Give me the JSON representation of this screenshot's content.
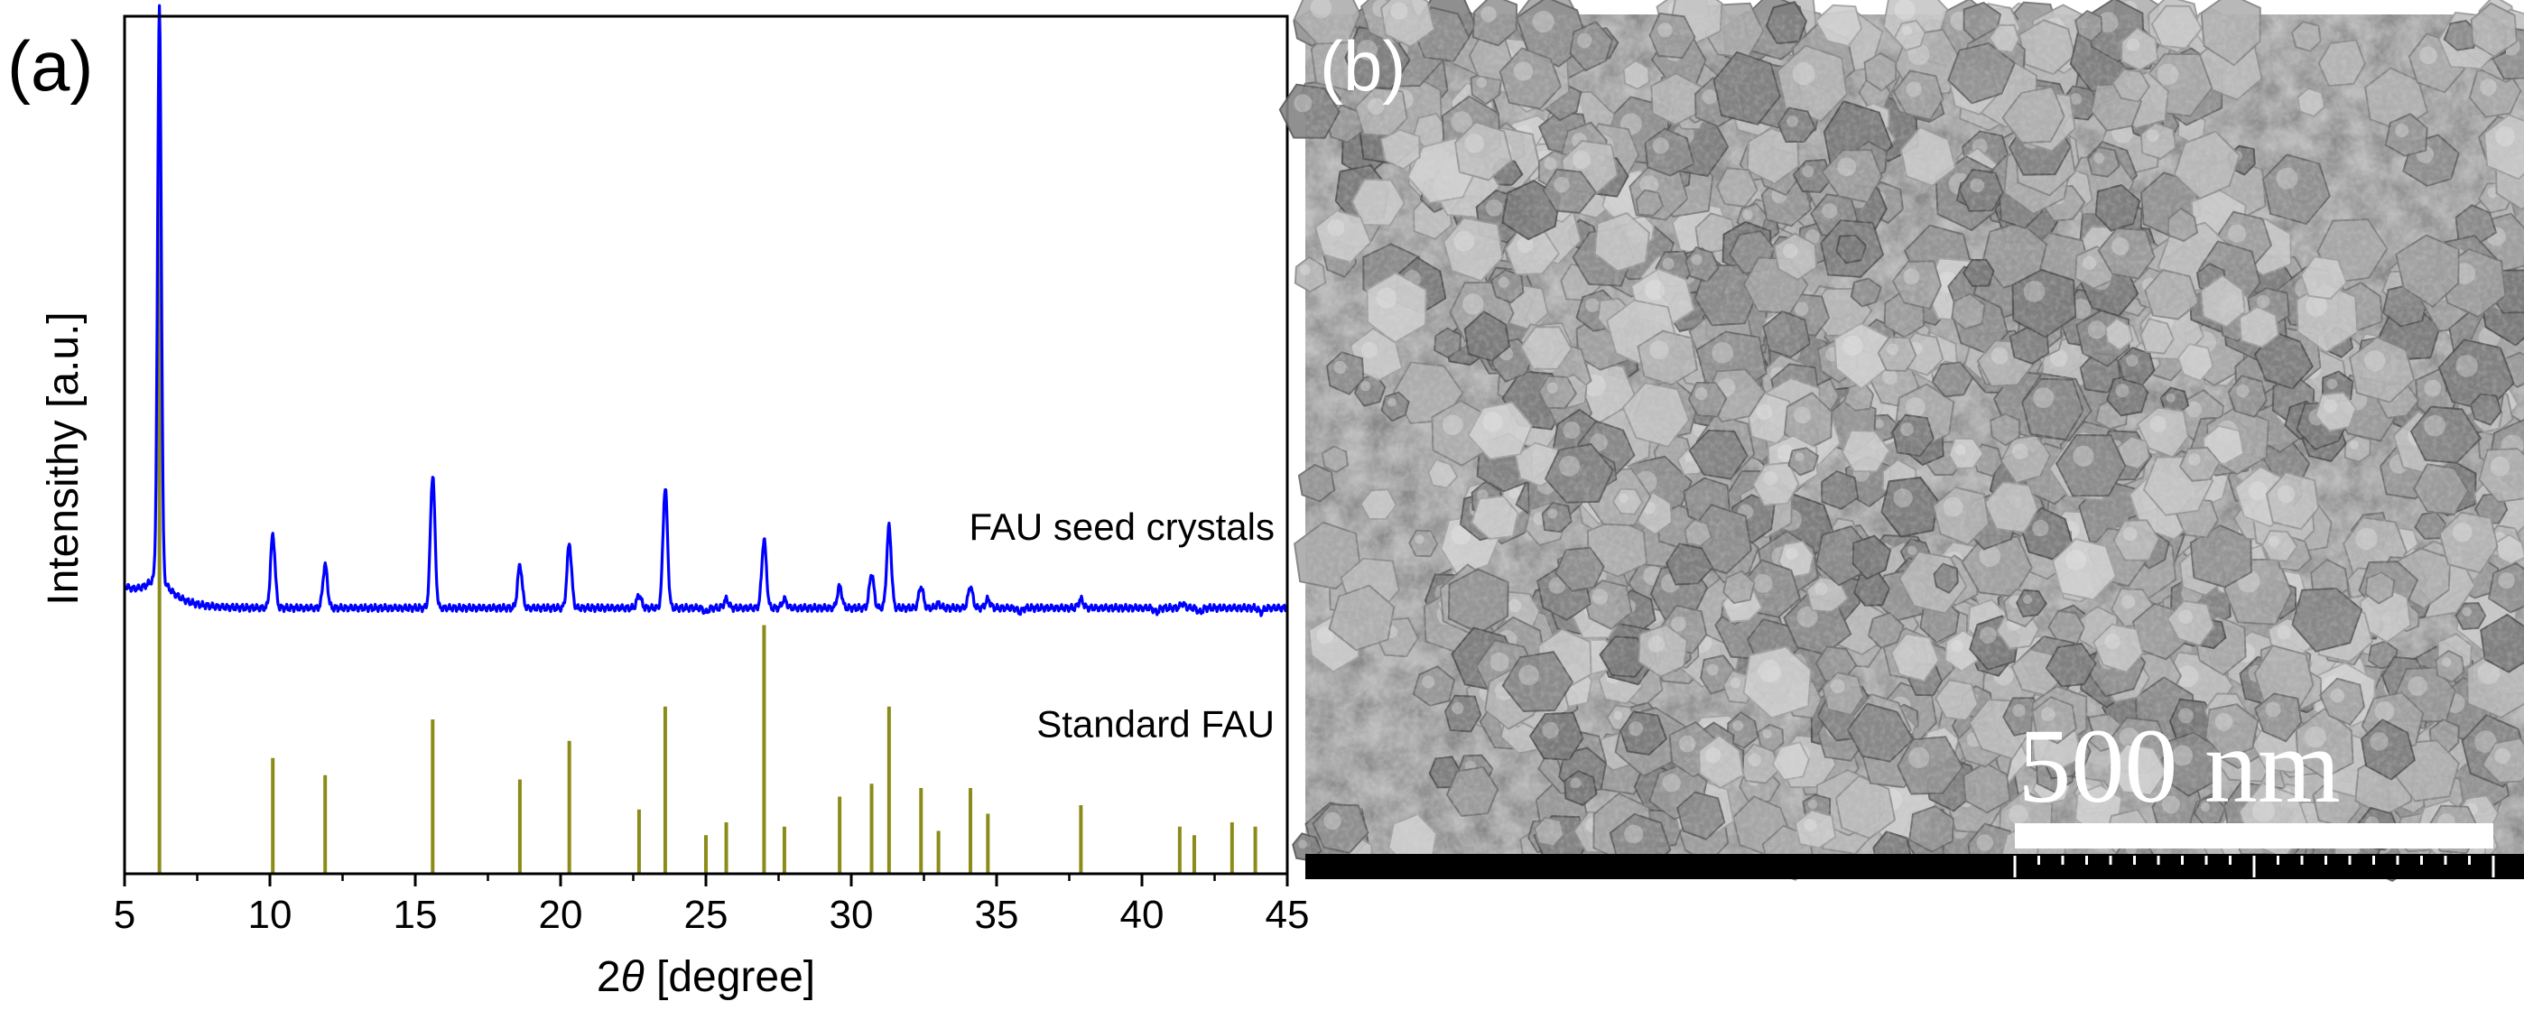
{
  "panel_a": {
    "label": "(a)"
  },
  "panel_b": {
    "label": "(b)",
    "scale_bar": {
      "text": "500 nm"
    }
  },
  "colors": {
    "xrd_pattern": "#0000ff",
    "reference_sticks": "#8b8b1a",
    "axes": "#000000"
  },
  "chart_data": {
    "type": "line",
    "xlabel_prefix": "2",
    "xlabel_symbol": "θ",
    "xlabel_suffix": " [degree]",
    "ylabel": "Intensithy [a.u.]",
    "xlim": [
      5,
      45
    ],
    "ylim": [
      0,
      1
    ],
    "xticks": [
      5,
      10,
      15,
      20,
      25,
      30,
      35,
      40,
      45
    ],
    "grid": false,
    "series": [
      {
        "name": "FAU seed crystals",
        "kind": "xrd_pattern",
        "baseline": 0.31,
        "peaks": [
          {
            "x": 6.2,
            "y": 0.97
          },
          {
            "x": 10.1,
            "y": 0.395
          },
          {
            "x": 11.9,
            "y": 0.36
          },
          {
            "x": 15.6,
            "y": 0.465
          },
          {
            "x": 18.6,
            "y": 0.36
          },
          {
            "x": 20.3,
            "y": 0.385
          },
          {
            "x": 22.7,
            "y": 0.325
          },
          {
            "x": 23.6,
            "y": 0.45
          },
          {
            "x": 25.0,
            "y": 0.305
          },
          {
            "x": 25.7,
            "y": 0.32
          },
          {
            "x": 27.0,
            "y": 0.39
          },
          {
            "x": 27.7,
            "y": 0.32
          },
          {
            "x": 29.6,
            "y": 0.335
          },
          {
            "x": 30.7,
            "y": 0.35
          },
          {
            "x": 31.3,
            "y": 0.405
          },
          {
            "x": 32.4,
            "y": 0.335
          },
          {
            "x": 33.0,
            "y": 0.315
          },
          {
            "x": 34.1,
            "y": 0.335
          },
          {
            "x": 34.7,
            "y": 0.32
          },
          {
            "x": 35.8,
            "y": 0.305
          },
          {
            "x": 37.9,
            "y": 0.32
          },
          {
            "x": 40.5,
            "y": 0.305
          },
          {
            "x": 41.4,
            "y": 0.315
          },
          {
            "x": 42.0,
            "y": 0.305
          },
          {
            "x": 43.2,
            "y": 0.31
          },
          {
            "x": 44.1,
            "y": 0.305
          }
        ]
      },
      {
        "name": "Standard FAU",
        "kind": "reference_sticks",
        "sticks": [
          {
            "x": 6.2,
            "y": 0.87
          },
          {
            "x": 10.1,
            "y": 0.135
          },
          {
            "x": 11.9,
            "y": 0.115
          },
          {
            "x": 15.6,
            "y": 0.18
          },
          {
            "x": 18.6,
            "y": 0.11
          },
          {
            "x": 20.3,
            "y": 0.155
          },
          {
            "x": 22.7,
            "y": 0.075
          },
          {
            "x": 23.6,
            "y": 0.195
          },
          {
            "x": 25.0,
            "y": 0.045
          },
          {
            "x": 25.7,
            "y": 0.06
          },
          {
            "x": 27.0,
            "y": 0.29
          },
          {
            "x": 27.7,
            "y": 0.055
          },
          {
            "x": 29.6,
            "y": 0.09
          },
          {
            "x": 30.7,
            "y": 0.105
          },
          {
            "x": 31.3,
            "y": 0.195
          },
          {
            "x": 32.4,
            "y": 0.1
          },
          {
            "x": 33.0,
            "y": 0.05
          },
          {
            "x": 34.1,
            "y": 0.1
          },
          {
            "x": 34.7,
            "y": 0.07
          },
          {
            "x": 37.9,
            "y": 0.08
          },
          {
            "x": 41.3,
            "y": 0.055
          },
          {
            "x": 41.8,
            "y": 0.045
          },
          {
            "x": 43.1,
            "y": 0.06
          },
          {
            "x": 43.9,
            "y": 0.055
          }
        ]
      }
    ]
  }
}
